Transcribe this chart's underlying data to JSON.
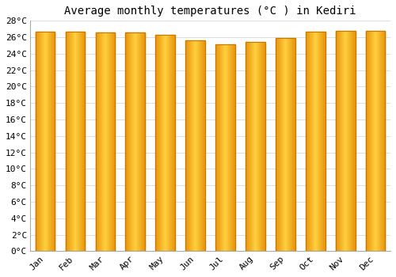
{
  "title": "Average monthly temperatures (°C ) in Kediri",
  "months": [
    "Jan",
    "Feb",
    "Mar",
    "Apr",
    "May",
    "Jun",
    "Jul",
    "Aug",
    "Sep",
    "Oct",
    "Nov",
    "Dec"
  ],
  "temperatures": [
    26.7,
    26.7,
    26.6,
    26.6,
    26.3,
    25.6,
    25.1,
    25.4,
    25.9,
    26.7,
    26.8,
    26.8
  ],
  "ylim": [
    0,
    28
  ],
  "yticks": [
    0,
    2,
    4,
    6,
    8,
    10,
    12,
    14,
    16,
    18,
    20,
    22,
    24,
    26,
    28
  ],
  "bar_color_edge": "#E8940A",
  "bar_color_center": "#FFD040",
  "bar_edge_color": "#C87800",
  "background_color": "#FFFFFF",
  "grid_color": "#DDDDDD",
  "title_fontsize": 10,
  "tick_fontsize": 8,
  "font_family": "monospace"
}
